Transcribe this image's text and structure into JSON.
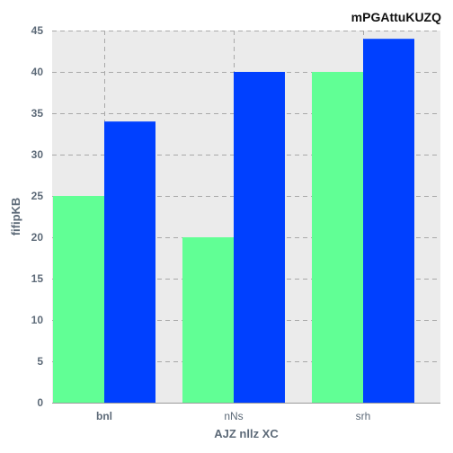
{
  "chart_data": {
    "type": "bar",
    "title": "mPGAttuKUZQ",
    "xlabel": "AJZ nllz XC",
    "ylabel": "fifipKB",
    "categories": [
      "bnl",
      "nNs",
      "srh"
    ],
    "category_bold": [
      true,
      false,
      false
    ],
    "series": [
      {
        "values": [
          25,
          20,
          40
        ],
        "color": "#61ff95"
      },
      {
        "values": [
          34,
          40,
          44
        ],
        "color": "#0040ff"
      }
    ],
    "ylim": [
      0,
      45
    ],
    "yticks": [
      0,
      5,
      10,
      15,
      20,
      25,
      30,
      35,
      40,
      45
    ],
    "grid": true,
    "plot_background": "#ebebeb",
    "legend": "none"
  }
}
